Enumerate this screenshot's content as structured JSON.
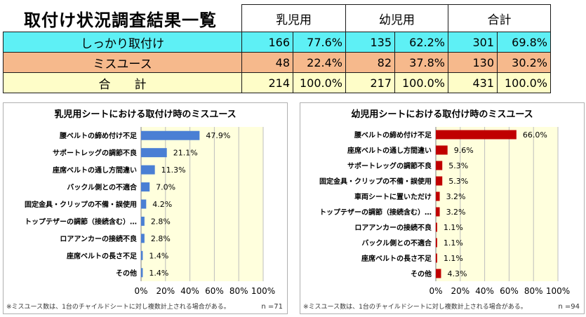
{
  "summary": {
    "title": "取付け状況調査結果一覧",
    "groups": [
      "乳児用",
      "幼児用",
      "合計"
    ],
    "rows": [
      {
        "label": "しっかり取付け",
        "values": [
          "166",
          "77.6%",
          "135",
          "62.2%",
          "301",
          "69.8%"
        ],
        "color": "#5ef0f5"
      },
      {
        "label": "ミスユース",
        "values": [
          "48",
          "22.4%",
          "82",
          "37.8%",
          "130",
          "30.2%"
        ],
        "color": "#f6b98c"
      },
      {
        "label": "合　　計",
        "values": [
          "214",
          "100.0%",
          "217",
          "100.0%",
          "431",
          "100.0%"
        ],
        "color": "#fefdc8"
      }
    ]
  },
  "chart_data": [
    {
      "type": "bar",
      "orientation": "horizontal",
      "title": "乳児用シートにおける取付け時のミスユース",
      "categories": [
        "腰ベルトの締め付け不足",
        "サポートレッグの調節不良",
        "座席ベルトの通し方間違い",
        "バックル側との不適合",
        "固定金具・クリップの不備・誤使用",
        "トップテザーの調節（接続含む）…",
        "ロアアンカーの接続不良",
        "座席ベルトの長さ不足",
        "その他"
      ],
      "values": [
        47.9,
        21.1,
        11.3,
        7.0,
        4.2,
        2.8,
        2.8,
        1.4,
        1.4
      ],
      "value_labels": [
        "47.9%",
        "21.1%",
        "11.3%",
        "7.0%",
        "4.2%",
        "2.8%",
        "2.8%",
        "1.4%",
        "1.4%"
      ],
      "xlim": [
        0,
        100
      ],
      "x_ticks": [
        "0%",
        "20%",
        "40%",
        "60%",
        "80%",
        "100%"
      ],
      "bar_color": "#4a7fd4",
      "plot_bg": "#ffffdd",
      "grid": true,
      "footnote": "※ミスユース数は、1台のチャイルドシートに対し複数計上される場合がある。",
      "n_label": "n =71"
    },
    {
      "type": "bar",
      "orientation": "horizontal",
      "title": "幼児用シートにおける取付け時のミスユース",
      "categories": [
        "腰ベルトの締め付け不足",
        "座席ベルトの通し方間違い",
        "サポートレッグの調節不良",
        "固定金具・クリップの不備・誤使用",
        "車両シートに置いただけ",
        "トップテザーの調節（接続含む）…",
        "ロアアンカーの接続不良",
        "バックル側との不適合",
        "座席ベルトの長さ不足",
        "その他"
      ],
      "values": [
        66.0,
        9.6,
        5.3,
        5.3,
        3.2,
        3.2,
        1.1,
        1.1,
        1.1,
        4.3
      ],
      "value_labels": [
        "66.0%",
        "9.6%",
        "5.3%",
        "5.3%",
        "3.2%",
        "3.2%",
        "1.1%",
        "1.1%",
        "1.1%",
        "4.3%"
      ],
      "xlim": [
        0,
        100
      ],
      "x_ticks": [
        "0%",
        "20%",
        "40%",
        "60%",
        "80%",
        "100%"
      ],
      "bar_color": "#c00000",
      "plot_bg": "#ffffdd",
      "grid": true,
      "footnote": "※ミスユース数は、1台のチャイルドシートに対し複数計上される場合がある。",
      "n_label": "n =94"
    }
  ]
}
